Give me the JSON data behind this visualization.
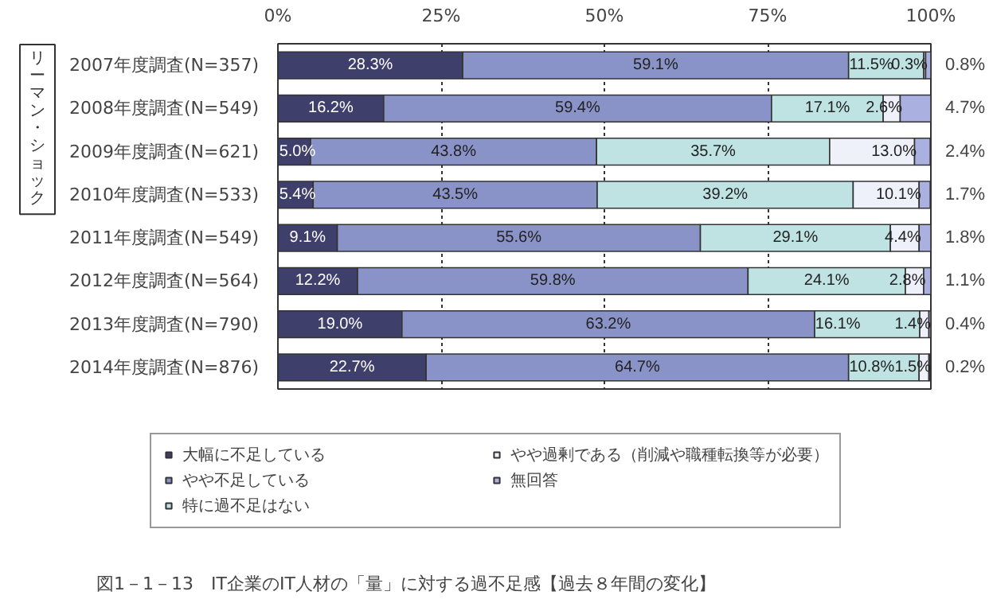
{
  "chart_data": {
    "type": "bar",
    "orientation": "horizontal",
    "stacked": true,
    "title": "図1－1－13　IT企業のIT人材の「量」に対する過不足感【過去８年間の変化】",
    "categories": [
      "2007年度調査(N=357)",
      "2008年度調査(N=549)",
      "2009年度調査(N=621)",
      "2010年度調査(N=533)",
      "2011年度調査(N=549)",
      "2012年度調査(N=564)",
      "2013年度調査(N=790)",
      "2014年度調査(N=876)"
    ],
    "series": [
      {
        "name": "大幅に不足している",
        "color": "#3f3f6b",
        "values": [
          28.3,
          16.2,
          5.0,
          5.4,
          9.1,
          12.2,
          19.0,
          22.7
        ],
        "value_labels": [
          "28.3%",
          "16.2%",
          "5.0%",
          "5.4%",
          "9.1%",
          "12.2%",
          "19.0%",
          "22.7%"
        ]
      },
      {
        "name": "やや不足している",
        "color": "#8a93c8",
        "values": [
          59.1,
          59.4,
          43.8,
          43.5,
          55.6,
          59.8,
          63.2,
          64.7
        ],
        "value_labels": [
          "59.1%",
          "59.4%",
          "43.8%",
          "43.5%",
          "55.6%",
          "59.8%",
          "63.2%",
          "64.7%"
        ]
      },
      {
        "name": "特に過不足はない",
        "color": "#bfe3e3",
        "values": [
          11.5,
          17.1,
          35.7,
          39.2,
          29.1,
          24.1,
          16.1,
          10.8
        ],
        "value_labels": [
          "11.5%",
          "17.1%",
          "35.7%",
          "39.2%",
          "29.1%",
          "24.1%",
          "16.1%",
          "10.8%"
        ]
      },
      {
        "name": "やや過剰である（削減や職種転換等が必要）",
        "color": "#eef0fa",
        "values": [
          0.3,
          2.6,
          13.0,
          10.1,
          4.4,
          2.8,
          1.4,
          1.5
        ],
        "value_labels": [
          "0.3%",
          "2.6%",
          "13.0%",
          "10.1%",
          "4.4%",
          "2.8%",
          "1.4%",
          "1.5%"
        ]
      },
      {
        "name": "無回答",
        "color": "#aab0e0",
        "values": [
          0.8,
          4.7,
          2.4,
          1.7,
          1.8,
          1.1,
          0.4,
          0.2
        ],
        "value_labels": [
          "0.8%",
          "4.7%",
          "2.4%",
          "1.7%",
          "1.8%",
          "1.1%",
          "0.4%",
          "0.2%"
        ]
      }
    ],
    "xlim": [
      0,
      100
    ],
    "xticks": [
      {
        "value": 0,
        "label": "0%"
      },
      {
        "value": 25,
        "label": "25%"
      },
      {
        "value": 50,
        "label": "50%"
      },
      {
        "value": 75,
        "label": "75%"
      },
      {
        "value": 100,
        "label": "100%"
      }
    ],
    "grid": "x",
    "legend": "bottom",
    "annotations": [
      "リーマン・ショック"
    ]
  }
}
